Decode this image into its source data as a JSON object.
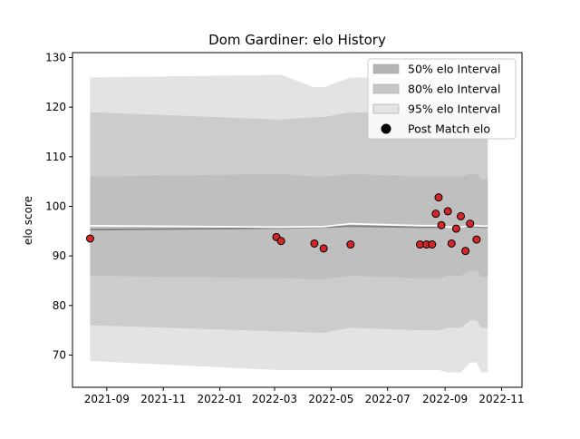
{
  "chart_data": {
    "type": "scatter",
    "title": "Dom Gardiner: elo History",
    "xlabel": "",
    "ylabel": "elo score",
    "xlim": [
      "2021-07-26",
      "2022-11-23"
    ],
    "ylim": [
      63.5,
      131.0
    ],
    "x_ticks": [
      "2021-09",
      "2021-11",
      "2022-01",
      "2022-03",
      "2022-05",
      "2022-07",
      "2022-09",
      "2022-11"
    ],
    "y_ticks": [
      70,
      80,
      90,
      100,
      110,
      120,
      130
    ],
    "grid": false,
    "legend_position": "top-right",
    "legend": [
      {
        "label": "50% elo Interval",
        "kind": "band",
        "color": "#b3b3b3"
      },
      {
        "label": "80% elo Interval",
        "kind": "band",
        "color": "#c7c7c7"
      },
      {
        "label": "95% elo Interval",
        "kind": "band",
        "color": "#e3e3e3"
      },
      {
        "label": "Post Match elo",
        "kind": "marker",
        "color": "#000000"
      }
    ],
    "colors": {
      "band_50": "#bfbfbf",
      "band_80": "#cccccc",
      "band_95": "#e3e3e3",
      "mean_line": "#808080",
      "median_line": "#ffffff",
      "point_fill": "#d62728",
      "point_edge": "#000000"
    },
    "bands": {
      "x": [
        "2021-08-14",
        "2022-03-03",
        "2022-03-08",
        "2022-04-13",
        "2022-04-23",
        "2022-05-22",
        "2022-08-05",
        "2022-08-18",
        "2022-08-25",
        "2022-09-04",
        "2022-09-13",
        "2022-09-18",
        "2022-09-28",
        "2022-10-05",
        "2022-10-10",
        "2022-10-14",
        "2022-10-17"
      ],
      "p95_lower": [
        68.8,
        67.0,
        67.0,
        67.0,
        67.0,
        67.0,
        67.0,
        67.0,
        67.0,
        66.5,
        66.5,
        66.5,
        68.5,
        68.5,
        66.5,
        66.5,
        66.5
      ],
      "p80_lower": [
        76.0,
        74.8,
        74.8,
        74.5,
        74.5,
        75.5,
        75.0,
        75.0,
        75.0,
        75.5,
        75.5,
        75.5,
        77.0,
        77.0,
        75.5,
        75.5,
        75.5
      ],
      "p50_lower": [
        86.0,
        85.5,
        85.5,
        85.3,
        85.3,
        86.0,
        85.5,
        85.5,
        85.5,
        86.0,
        86.0,
        86.0,
        87.0,
        87.0,
        85.8,
        85.8,
        85.8
      ],
      "p50_upper": [
        106.0,
        106.5,
        106.5,
        106.0,
        106.0,
        106.5,
        106.0,
        106.0,
        106.0,
        106.0,
        106.0,
        106.0,
        106.5,
        106.5,
        105.5,
        105.5,
        105.5
      ],
      "p80_upper": [
        119.0,
        117.5,
        117.5,
        118.0,
        118.0,
        119.0,
        118.5,
        118.5,
        118.5,
        118.5,
        118.5,
        118.5,
        119.0,
        119.0,
        118.5,
        118.5,
        118.5
      ],
      "p95_upper": [
        126.0,
        126.5,
        126.5,
        124.0,
        124.0,
        126.0,
        125.8,
        125.8,
        125.8,
        126.0,
        126.0,
        126.0,
        126.5,
        126.5,
        125.8,
        125.8,
        125.8
      ],
      "mean": [
        95.3,
        95.6,
        95.6,
        95.8,
        95.8,
        96.0,
        95.8,
        95.8,
        95.8,
        95.8,
        95.8,
        95.8,
        95.9,
        95.9,
        95.8,
        95.8,
        95.8
      ],
      "median": [
        96.1,
        95.8,
        95.8,
        95.9,
        95.9,
        96.5,
        96.1,
        96.1,
        96.1,
        95.8,
        95.8,
        95.8,
        96.1,
        96.1,
        96.0,
        96.0,
        96.0
      ]
    },
    "series": [
      {
        "name": "Post Match elo",
        "points": [
          {
            "x": "2021-08-14",
            "y": 93.5
          },
          {
            "x": "2022-03-03",
            "y": 93.8
          },
          {
            "x": "2022-03-08",
            "y": 93.0
          },
          {
            "x": "2022-04-13",
            "y": 92.5
          },
          {
            "x": "2022-04-23",
            "y": 91.5
          },
          {
            "x": "2022-05-22",
            "y": 92.3
          },
          {
            "x": "2022-08-05",
            "y": 92.3
          },
          {
            "x": "2022-08-12",
            "y": 92.3
          },
          {
            "x": "2022-08-18",
            "y": 92.3
          },
          {
            "x": "2022-08-22",
            "y": 98.5
          },
          {
            "x": "2022-08-25",
            "y": 101.8
          },
          {
            "x": "2022-08-28",
            "y": 96.2
          },
          {
            "x": "2022-09-04",
            "y": 99.0
          },
          {
            "x": "2022-09-08",
            "y": 92.5
          },
          {
            "x": "2022-09-13",
            "y": 95.5
          },
          {
            "x": "2022-09-18",
            "y": 98.0
          },
          {
            "x": "2022-09-23",
            "y": 91.0
          },
          {
            "x": "2022-09-28",
            "y": 96.5
          },
          {
            "x": "2022-10-05",
            "y": 93.3
          }
        ]
      }
    ]
  }
}
